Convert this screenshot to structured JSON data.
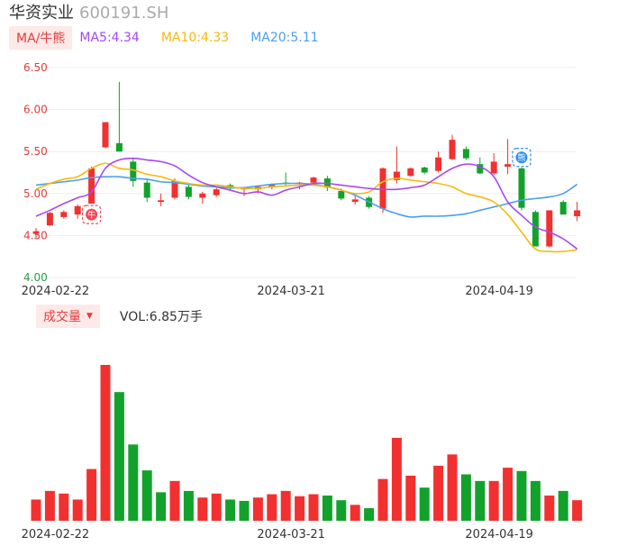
{
  "header": {
    "name": "华资实业",
    "code": "600191.SH"
  },
  "legend": {
    "badge": "MA/牛熊",
    "ma5": "MA5:4.34",
    "ma10": "MA10:4.33",
    "ma20": "MA20:5.11"
  },
  "volume_header": {
    "badge": "成交量",
    "value": "VOL:6.85万手"
  },
  "markers": {
    "bull": "牛",
    "bear": "熊"
  },
  "colors": {
    "up": "#f23030",
    "down": "#12a22c",
    "ma5": "#a847f0",
    "ma10": "#f6b90d",
    "ma20": "#4a9ff0",
    "axis_text": "#e33c3c",
    "axis_text_low": "#2aa14a",
    "grid": "#eeeeee"
  },
  "chart_data": [
    {
      "type": "candlestick",
      "y_ticks": [
        "6.50",
        "6.00",
        "5.50",
        "5.00",
        "4.50",
        "4.00"
      ],
      "ylim": [
        4.0,
        6.5
      ],
      "x_tick_labels": [
        "2024-02-22",
        "2024-03-21",
        "2024-04-19"
      ],
      "x_tick_index": [
        1,
        18,
        33
      ],
      "candles": [
        {
          "o": 4.52,
          "h": 4.59,
          "l": 4.47,
          "c": 4.55
        },
        {
          "o": 4.62,
          "h": 4.78,
          "l": 4.62,
          "c": 4.77
        },
        {
          "o": 4.72,
          "h": 4.8,
          "l": 4.7,
          "c": 4.78
        },
        {
          "o": 4.75,
          "h": 4.87,
          "l": 4.7,
          "c": 4.85
        },
        {
          "o": 4.88,
          "h": 5.32,
          "l": 4.88,
          "c": 5.3
        },
        {
          "o": 5.55,
          "h": 5.85,
          "l": 5.54,
          "c": 5.85
        },
        {
          "o": 5.6,
          "h": 6.33,
          "l": 5.5,
          "c": 5.5
        },
        {
          "o": 5.38,
          "h": 5.43,
          "l": 5.08,
          "c": 5.15
        },
        {
          "o": 5.13,
          "h": 5.18,
          "l": 4.9,
          "c": 4.95
        },
        {
          "o": 4.9,
          "h": 5.0,
          "l": 4.85,
          "c": 4.92
        },
        {
          "o": 4.95,
          "h": 5.18,
          "l": 4.93,
          "c": 5.15
        },
        {
          "o": 5.08,
          "h": 5.12,
          "l": 4.93,
          "c": 4.96
        },
        {
          "o": 4.95,
          "h": 5.02,
          "l": 4.88,
          "c": 5.0
        },
        {
          "o": 4.98,
          "h": 5.07,
          "l": 4.96,
          "c": 5.05
        },
        {
          "o": 5.1,
          "h": 5.12,
          "l": 5.04,
          "c": 5.06
        },
        {
          "o": 5.05,
          "h": 5.08,
          "l": 4.97,
          "c": 5.06
        },
        {
          "o": 5.05,
          "h": 5.1,
          "l": 5.0,
          "c": 5.08
        },
        {
          "o": 5.08,
          "h": 5.12,
          "l": 5.05,
          "c": 5.11
        },
        {
          "o": 5.13,
          "h": 5.25,
          "l": 5.1,
          "c": 5.12
        },
        {
          "o": 5.12,
          "h": 5.14,
          "l": 5.05,
          "c": 5.13
        },
        {
          "o": 5.13,
          "h": 5.2,
          "l": 5.12,
          "c": 5.19
        },
        {
          "o": 5.18,
          "h": 5.21,
          "l": 5.03,
          "c": 5.07
        },
        {
          "o": 5.03,
          "h": 5.06,
          "l": 4.92,
          "c": 4.94
        },
        {
          "o": 4.9,
          "h": 4.97,
          "l": 4.87,
          "c": 4.93
        },
        {
          "o": 4.95,
          "h": 4.97,
          "l": 4.82,
          "c": 4.84
        },
        {
          "o": 4.82,
          "h": 5.31,
          "l": 4.77,
          "c": 5.3
        },
        {
          "o": 5.16,
          "h": 5.56,
          "l": 5.12,
          "c": 5.26
        },
        {
          "o": 5.21,
          "h": 5.31,
          "l": 5.2,
          "c": 5.3
        },
        {
          "o": 5.31,
          "h": 5.32,
          "l": 5.23,
          "c": 5.25
        },
        {
          "o": 5.27,
          "h": 5.5,
          "l": 5.25,
          "c": 5.43
        },
        {
          "o": 5.41,
          "h": 5.7,
          "l": 5.4,
          "c": 5.64
        },
        {
          "o": 5.53,
          "h": 5.56,
          "l": 5.4,
          "c": 5.42
        },
        {
          "o": 5.35,
          "h": 5.43,
          "l": 5.23,
          "c": 5.24
        },
        {
          "o": 5.24,
          "h": 5.48,
          "l": 5.22,
          "c": 5.38
        },
        {
          "o": 5.32,
          "h": 5.65,
          "l": 5.23,
          "c": 5.35
        },
        {
          "o": 5.3,
          "h": 5.31,
          "l": 4.8,
          "c": 4.83
        },
        {
          "o": 4.78,
          "h": 4.8,
          "l": 4.37,
          "c": 4.37
        },
        {
          "o": 4.37,
          "h": 4.8,
          "l": 4.36,
          "c": 4.8
        },
        {
          "o": 4.9,
          "h": 4.92,
          "l": 4.75,
          "c": 4.75
        },
        {
          "o": 4.73,
          "h": 4.9,
          "l": 4.67,
          "c": 4.8
        }
      ],
      "ma5": [
        4.73,
        4.8,
        4.88,
        4.95,
        5.02,
        5.3,
        5.4,
        5.42,
        5.4,
        5.38,
        5.33,
        5.22,
        5.13,
        5.08,
        5.04,
        5.0,
        5.02,
        4.98,
        5.04,
        5.08,
        5.12,
        5.12,
        5.1,
        5.08,
        5.06,
        5.05,
        5.05,
        5.07,
        5.1,
        5.2,
        5.3,
        5.35,
        5.32,
        5.2,
        4.9,
        4.74,
        4.6,
        4.54,
        4.46,
        4.34
      ],
      "ma10": [
        5.05,
        5.12,
        5.17,
        5.2,
        5.3,
        5.36,
        5.3,
        5.28,
        5.23,
        5.2,
        5.15,
        5.12,
        5.1,
        5.1,
        5.08,
        5.06,
        5.06,
        5.08,
        5.09,
        5.1,
        5.1,
        5.08,
        5.04,
        5.0,
        5.02,
        5.14,
        5.18,
        5.16,
        5.14,
        5.12,
        5.08,
        5.0,
        4.96,
        4.9,
        4.75,
        4.54,
        4.34,
        4.31,
        4.31,
        4.33
      ],
      "ma20": [
        5.1,
        5.12,
        5.14,
        5.16,
        5.19,
        5.2,
        5.2,
        5.18,
        5.17,
        5.14,
        5.13,
        5.11,
        5.09,
        5.08,
        5.07,
        5.07,
        5.09,
        5.11,
        5.12,
        5.12,
        5.11,
        5.08,
        5.04,
        4.98,
        4.9,
        4.82,
        4.76,
        4.72,
        4.73,
        4.73,
        4.74,
        4.76,
        4.8,
        4.84,
        4.88,
        4.92,
        4.94,
        4.96,
        5.0,
        5.11
      ],
      "markers": [
        {
          "type": "bull",
          "index": 4,
          "price": 4.75
        },
        {
          "type": "bear",
          "index": 35,
          "price": 5.43
        }
      ]
    },
    {
      "type": "bar",
      "title": "成交量",
      "x_tick_labels": [
        "2024-02-22",
        "2024-03-21",
        "2024-04-19"
      ],
      "values": [
        3.2,
        4.5,
        4.1,
        3.2,
        7.8,
        23.5,
        19.4,
        11.5,
        7.6,
        4.3,
        6.0,
        4.5,
        3.5,
        4.1,
        3.2,
        3.0,
        3.5,
        4.0,
        4.5,
        3.7,
        4.0,
        3.8,
        3.1,
        2.4,
        1.9,
        6.3,
        12.5,
        6.8,
        5.0,
        8.3,
        10.0,
        7.0,
        6.0,
        6.0,
        8.0,
        7.5,
        6.0,
        3.8,
        4.5,
        3.1
      ],
      "up": [
        true,
        true,
        true,
        true,
        true,
        true,
        false,
        false,
        false,
        false,
        true,
        false,
        true,
        true,
        false,
        false,
        true,
        true,
        true,
        true,
        true,
        false,
        false,
        true,
        false,
        true,
        true,
        true,
        false,
        true,
        true,
        false,
        false,
        true,
        true,
        false,
        false,
        true,
        false,
        true
      ],
      "note": "values in arbitrary volume units estimated from bar heights"
    }
  ]
}
